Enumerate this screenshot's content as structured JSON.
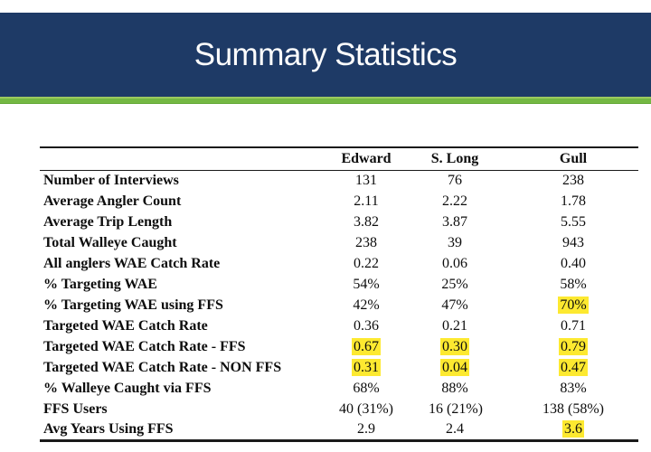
{
  "slide": {
    "title": "Summary Statistics",
    "colors": {
      "banner_navy": "#1e3a66",
      "stripe_green": "#74b843",
      "stripe_green_light": "#9cc95e",
      "highlight_yellow": "#fde930",
      "table_line": "#1a1a1a"
    }
  },
  "table": {
    "columns": [
      "",
      "Edward",
      "S. Long",
      "Gull"
    ],
    "rows": [
      {
        "label": "Number of Interviews",
        "values": [
          "131",
          "76",
          "238"
        ],
        "highlight": [
          false,
          false,
          false
        ]
      },
      {
        "label": "Average Angler Count",
        "values": [
          "2.11",
          "2.22",
          "1.78"
        ],
        "highlight": [
          false,
          false,
          false
        ]
      },
      {
        "label": "Average Trip Length",
        "values": [
          "3.82",
          "3.87",
          "5.55"
        ],
        "highlight": [
          false,
          false,
          false
        ]
      },
      {
        "label": "Total Walleye Caught",
        "values": [
          "238",
          "39",
          "943"
        ],
        "highlight": [
          false,
          false,
          false
        ]
      },
      {
        "label": "All anglers WAE Catch Rate",
        "values": [
          "0.22",
          "0.06",
          "0.40"
        ],
        "highlight": [
          false,
          false,
          false
        ]
      },
      {
        "label": "% Targeting WAE",
        "values": [
          "54%",
          "25%",
          "58%"
        ],
        "highlight": [
          false,
          false,
          false
        ]
      },
      {
        "label": "% Targeting WAE using FFS",
        "values": [
          "42%",
          "47%",
          "70%"
        ],
        "highlight": [
          false,
          false,
          true
        ]
      },
      {
        "label": "Targeted WAE Catch Rate",
        "values": [
          "0.36",
          "0.21",
          "0.71"
        ],
        "highlight": [
          false,
          false,
          false
        ]
      },
      {
        "label": "Targeted WAE Catch Rate - FFS",
        "values": [
          "0.67",
          "0.30",
          "0.79"
        ],
        "highlight": [
          true,
          true,
          true
        ]
      },
      {
        "label": "Targeted WAE Catch Rate - NON FFS",
        "values": [
          "0.31",
          "0.04",
          "0.47"
        ],
        "highlight": [
          true,
          true,
          true
        ]
      },
      {
        "label": "% Walleye Caught via FFS",
        "values": [
          "68%",
          "88%",
          "83%"
        ],
        "highlight": [
          false,
          false,
          false
        ]
      },
      {
        "label": "FFS Users",
        "values": [
          "40 (31%)",
          "16 (21%)",
          "138 (58%)"
        ],
        "highlight": [
          false,
          false,
          false
        ]
      },
      {
        "label": "Avg Years Using FFS",
        "values": [
          "2.9",
          "2.4",
          "3.6"
        ],
        "highlight": [
          false,
          false,
          true
        ]
      }
    ]
  }
}
